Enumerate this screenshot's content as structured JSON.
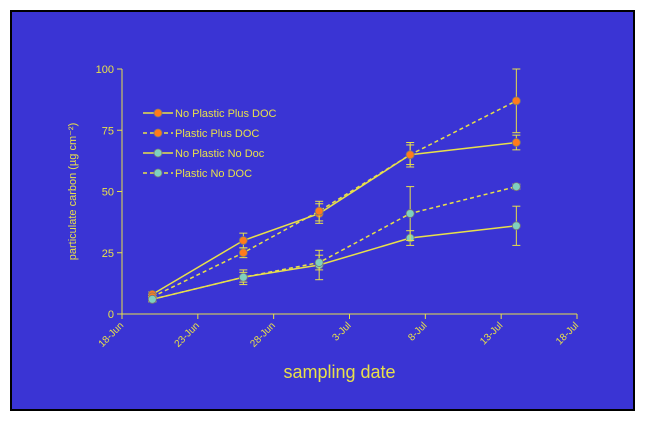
{
  "colors": {
    "background": "#3a34d4",
    "frame": "#000000",
    "axis": "#e8e04a",
    "text": "#e8e04a",
    "marker_orange": "#ff7b1c",
    "marker_teal": "#7fd0c0"
  },
  "chart_data": {
    "type": "line",
    "title": "",
    "xlabel": "sampling date",
    "ylabel": "particulate carbon (µg cm⁻²)",
    "xlim": [
      "18-Jun",
      "18-Jul"
    ],
    "ylim": [
      0,
      100
    ],
    "x_ticks": [
      "18-Jun",
      "23-Jun",
      "28-Jun",
      "3-Jul",
      "8-Jul",
      "13-Jul",
      "18-Jul"
    ],
    "y_ticks": [
      0,
      25,
      50,
      75,
      100
    ],
    "grid": false,
    "legend_position": "top-left",
    "series": [
      {
        "name": "No Plastic Plus DOC",
        "line_style": "solid",
        "marker_color": "orange",
        "x": [
          "20-Jun",
          "26-Jun",
          "1-Jul",
          "7-Jul",
          "14-Jul"
        ],
        "y": [
          8,
          30,
          41,
          65,
          70
        ],
        "error": [
          1,
          3,
          4,
          5,
          3
        ]
      },
      {
        "name": "Plastic Plus DOC",
        "line_style": "dashed",
        "marker_color": "orange",
        "x": [
          "20-Jun",
          "26-Jun",
          "1-Jul",
          "7-Jul",
          "14-Jul"
        ],
        "y": [
          7,
          25,
          42,
          65,
          87
        ],
        "error": [
          1,
          2,
          4,
          4,
          13
        ]
      },
      {
        "name": "No Plastic No Doc",
        "line_style": "solid",
        "marker_color": "teal",
        "x": [
          "20-Jun",
          "26-Jun",
          "1-Jul",
          "7-Jul",
          "14-Jul"
        ],
        "y": [
          6,
          15,
          20,
          31,
          36
        ],
        "error": [
          1,
          2,
          6,
          3,
          8
        ]
      },
      {
        "name": "Plastic No DOC",
        "line_style": "dashed",
        "marker_color": "teal",
        "x": [
          "20-Jun",
          "26-Jun",
          "1-Jul",
          "7-Jul",
          "14-Jul"
        ],
        "y": [
          6,
          15,
          21,
          41,
          52
        ],
        "error": [
          1,
          3,
          3,
          11,
          1
        ]
      }
    ]
  }
}
